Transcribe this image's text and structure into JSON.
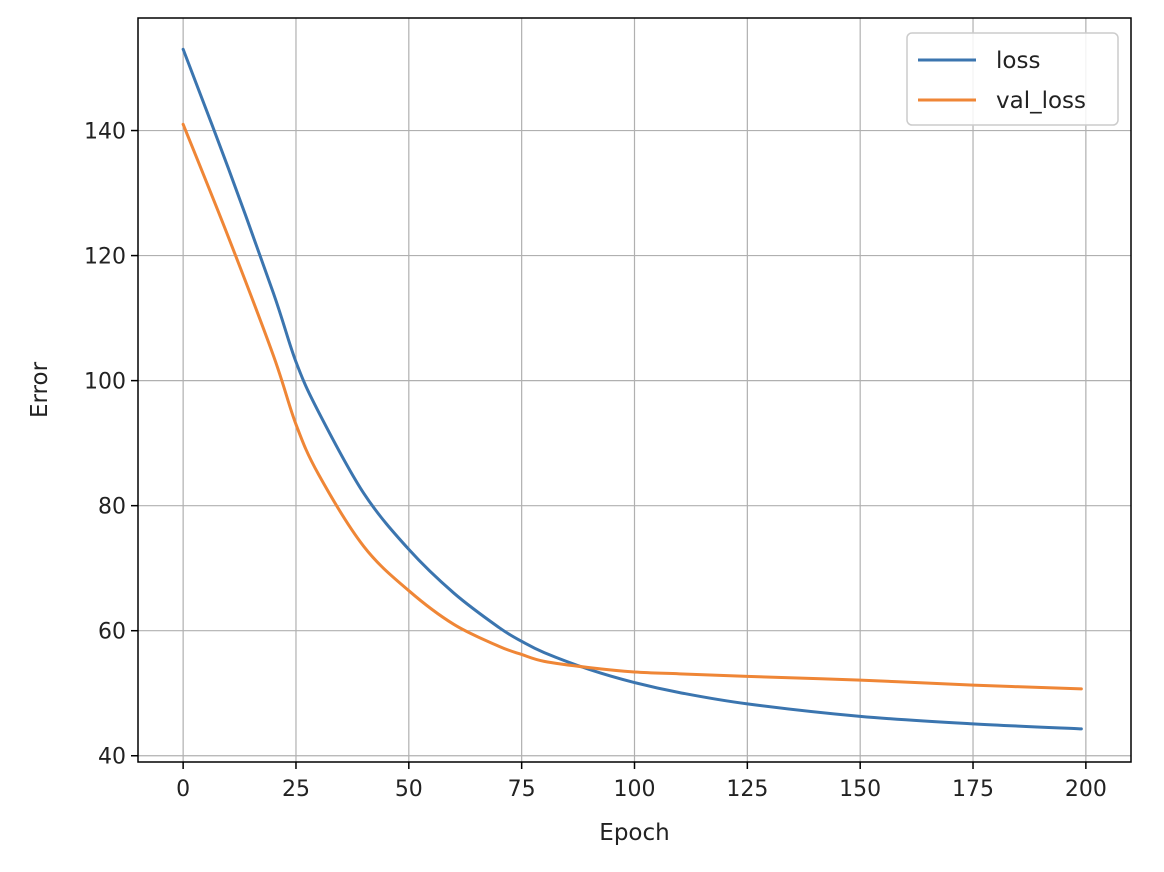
{
  "chart_data": {
    "type": "line",
    "title": "",
    "xlabel": "Epoch",
    "ylabel": "Error",
    "xlim": [
      -10,
      210
    ],
    "ylim": [
      39,
      158
    ],
    "xticks": [
      0,
      25,
      50,
      75,
      100,
      125,
      150,
      175,
      200
    ],
    "yticks": [
      40,
      60,
      80,
      100,
      120,
      140
    ],
    "grid": true,
    "legend_position": "top-right",
    "x": [
      0,
      10,
      20,
      25,
      30,
      40,
      50,
      60,
      70,
      75,
      80,
      90,
      100,
      110,
      125,
      150,
      175,
      199
    ],
    "series": [
      {
        "name": "loss",
        "color": "#3b75af",
        "values": [
          153,
          134,
          114,
          103,
          95,
          82,
          73,
          66,
          60.5,
          58.3,
          56.5,
          53.8,
          51.7,
          50.1,
          48.3,
          46.3,
          45.1,
          44.3
        ]
      },
      {
        "name": "val_loss",
        "color": "#ef8636",
        "values": [
          141,
          123,
          104,
          93,
          85,
          73.5,
          66.4,
          61,
          57.5,
          56.2,
          55.1,
          54.1,
          53.4,
          53.1,
          52.7,
          52.1,
          51.3,
          50.7
        ]
      }
    ]
  }
}
